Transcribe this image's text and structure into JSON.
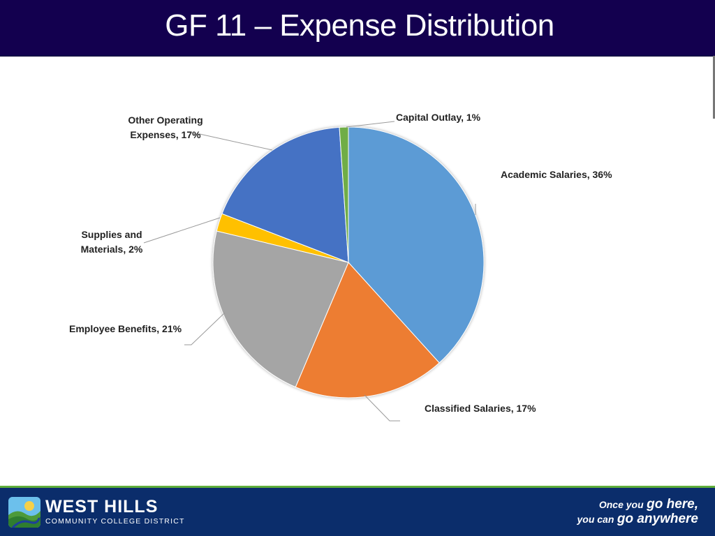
{
  "header": {
    "title": "GF 11 – Expense Distribution"
  },
  "chart_data": {
    "type": "pie",
    "title": "",
    "slices": [
      {
        "label": "Academic Salaries, 36%",
        "value": 36,
        "color": "#5b9bd5"
      },
      {
        "label": "Classified Salaries, 17%",
        "value": 17,
        "color": "#ed7d31"
      },
      {
        "label": "Employee Benefits, 21%",
        "value": 21,
        "color": "#a5a5a5"
      },
      {
        "label": "Supplies and Materials, 2%",
        "value": 2,
        "color": "#ffc000"
      },
      {
        "label": "Other Operating Expenses, 17%",
        "value": 17,
        "color": "#4472c4"
      },
      {
        "label": "Capital Outlay, 1%",
        "value": 1,
        "color": "#70ad47"
      }
    ]
  },
  "labels": {
    "academic": "Academic Salaries, 36%",
    "classified": "Classified Salaries, 17%",
    "benefits": "Employee Benefits, 21%",
    "supplies_line1": "Supplies and",
    "supplies_line2": "Materials, 2%",
    "other_line1": "Other Operating",
    "other_line2": "Expenses, 17%",
    "capital": "Capital Outlay, 1%"
  },
  "footer": {
    "logo_name": "WEST HILLS",
    "logo_subtitle": "COMMUNITY COLLEGE DISTRICT",
    "tagline_line1_small": "Once you",
    "tagline_line1_big": "go here,",
    "tagline_line2_small": "you can",
    "tagline_line2_big": "go anywhere",
    "colors": {
      "bar": "#0b2d6b",
      "accent": "#5fae3a"
    }
  }
}
